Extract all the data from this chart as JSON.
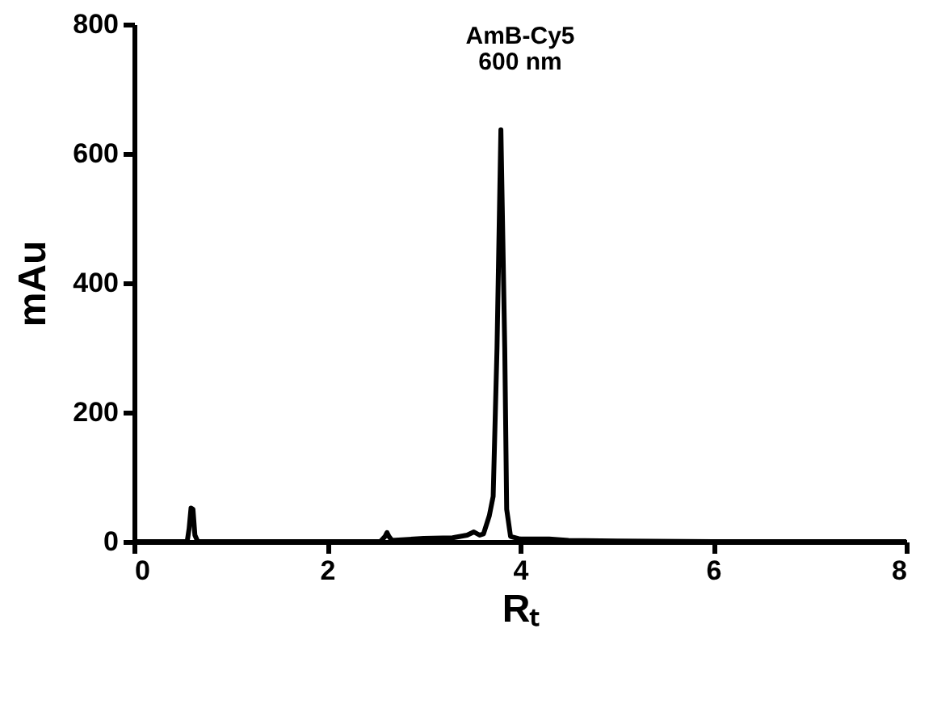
{
  "chart_data": {
    "type": "line",
    "title": "AmB-Cy5",
    "subtitle": "600 nm",
    "xlabel": "Rₜ",
    "ylabel": "mAu",
    "x": [
      0,
      0.55,
      0.57,
      0.59,
      0.61,
      0.63,
      0.66,
      2.55,
      2.6,
      2.62,
      2.64,
      2.67,
      3.0,
      3.3,
      3.45,
      3.52,
      3.58,
      3.62,
      3.68,
      3.72,
      3.76,
      3.8,
      3.84,
      3.86,
      3.9,
      4.0,
      4.3,
      4.5,
      5,
      6,
      8
    ],
    "series": [
      {
        "color": "#000000",
        "values": [
          0,
          0,
          20,
          52,
          50,
          10,
          0,
          0,
          8,
          14,
          8,
          2,
          5,
          6,
          10,
          15,
          10,
          12,
          40,
          70,
          300,
          637,
          300,
          50,
          8,
          4,
          4,
          2,
          1,
          0,
          0
        ]
      }
    ],
    "xlim": [
      0,
      8
    ],
    "xticks": [
      0,
      2,
      4,
      6,
      8
    ],
    "ylim": [
      0,
      800
    ],
    "yticks": [
      0,
      200,
      400,
      600,
      800
    ],
    "grid": false,
    "line_style": "solid"
  }
}
